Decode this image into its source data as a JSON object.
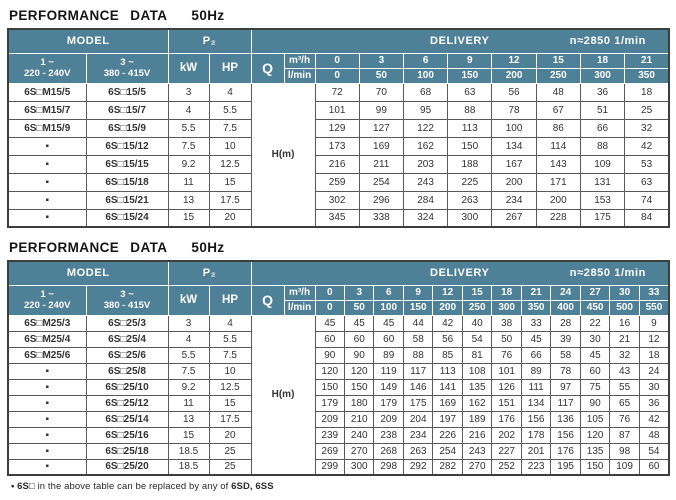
{
  "colors": {
    "header_teal": "#4e8098",
    "grid_dark": "#595959",
    "title_text": "#151515"
  },
  "footnote": {
    "lead": "• 6S□",
    "middle": " in the above table can be replaced by any of ",
    "tail": "6SD, 6SS"
  },
  "tables": [
    {
      "title": "PERFORMANCE DATA",
      "freq": "50Hz",
      "headers": {
        "model": "MODEL",
        "p2": "P₂",
        "delivery": "DELIVERY",
        "speed": "n≈2850 1/min",
        "phase1": "1 ~",
        "phase1v": "220 - 240V",
        "phase3": "3 ~",
        "phase3v": "380 - 415V",
        "kw": "kW",
        "hp": "HP",
        "q": "Q",
        "m3h": "m³/h",
        "lmin": "l/min",
        "h": "H",
        "h_unit": "(m)"
      },
      "flow_m3h": [
        "0",
        "3",
        "6",
        "9",
        "12",
        "15",
        "18",
        "21"
      ],
      "flow_lmin": [
        "0",
        "50",
        "100",
        "150",
        "200",
        "250",
        "300",
        "350"
      ],
      "rows": [
        {
          "model1": "6S□M15/5",
          "model3": "6S□15/5",
          "kw": "3",
          "hp": "4",
          "values": [
            "72",
            "70",
            "68",
            "63",
            "56",
            "48",
            "36",
            "18"
          ]
        },
        {
          "model1": "6S□M15/7",
          "model3": "6S□15/7",
          "kw": "4",
          "hp": "5.5",
          "values": [
            "101",
            "99",
            "95",
            "88",
            "78",
            "67",
            "51",
            "25"
          ]
        },
        {
          "model1": "6S□M15/9",
          "model3": "6S□15/9",
          "kw": "5.5",
          "hp": "7.5",
          "values": [
            "129",
            "127",
            "122",
            "113",
            "100",
            "86",
            "66",
            "32"
          ]
        },
        {
          "model1": "▪",
          "model3": "6S□15/12",
          "kw": "7.5",
          "hp": "10",
          "values": [
            "173",
            "169",
            "162",
            "150",
            "134",
            "114",
            "88",
            "42"
          ]
        },
        {
          "model1": "▪",
          "model3": "6S□15/15",
          "kw": "9.2",
          "hp": "12.5",
          "values": [
            "216",
            "211",
            "203",
            "188",
            "167",
            "143",
            "109",
            "53"
          ]
        },
        {
          "model1": "▪",
          "model3": "6S□15/18",
          "kw": "11",
          "hp": "15",
          "values": [
            "259",
            "254",
            "243",
            "225",
            "200",
            "171",
            "131",
            "63"
          ]
        },
        {
          "model1": "▪",
          "model3": "6S□15/21",
          "kw": "13",
          "hp": "17.5",
          "values": [
            "302",
            "296",
            "284",
            "263",
            "234",
            "200",
            "153",
            "74"
          ]
        },
        {
          "model1": "▪",
          "model3": "6S□15/24",
          "kw": "15",
          "hp": "20",
          "values": [
            "345",
            "338",
            "324",
            "300",
            "267",
            "228",
            "175",
            "84"
          ]
        }
      ]
    },
    {
      "title": "PERFORMANCE DATA",
      "freq": "50Hz",
      "headers": {
        "model": "MODEL",
        "p2": "P₂",
        "delivery": "DELIVERY",
        "speed": "n≈2850 1/min",
        "phase1": "1 ~",
        "phase1v": "220 - 240V",
        "phase3": "3 ~",
        "phase3v": "380 - 415V",
        "kw": "kW",
        "hp": "HP",
        "q": "Q",
        "m3h": "m³/h",
        "lmin": "l/min",
        "h": "H",
        "h_unit": "(m)"
      },
      "flow_m3h": [
        "0",
        "3",
        "6",
        "9",
        "12",
        "15",
        "18",
        "21",
        "24",
        "27",
        "30",
        "33"
      ],
      "flow_lmin": [
        "0",
        "50",
        "100",
        "150",
        "200",
        "250",
        "300",
        "350",
        "400",
        "450",
        "500",
        "550"
      ],
      "rows": [
        {
          "model1": "6S□M25/3",
          "model3": "6S□25/3",
          "kw": "3",
          "hp": "4",
          "values": [
            "45",
            "45",
            "45",
            "44",
            "42",
            "40",
            "38",
            "33",
            "28",
            "22",
            "16",
            "9"
          ]
        },
        {
          "model1": "6S□M25/4",
          "model3": "6S□25/4",
          "kw": "4",
          "hp": "5.5",
          "values": [
            "60",
            "60",
            "60",
            "58",
            "56",
            "54",
            "50",
            "45",
            "39",
            "30",
            "21",
            "12"
          ]
        },
        {
          "model1": "6S□M25/6",
          "model3": "6S□25/6",
          "kw": "5.5",
          "hp": "7.5",
          "values": [
            "90",
            "90",
            "89",
            "88",
            "85",
            "81",
            "76",
            "66",
            "58",
            "45",
            "32",
            "18"
          ]
        },
        {
          "model1": "▪",
          "model3": "6S□25/8",
          "kw": "7.5",
          "hp": "10",
          "values": [
            "120",
            "120",
            "119",
            "117",
            "113",
            "108",
            "101",
            "89",
            "78",
            "60",
            "43",
            "24"
          ]
        },
        {
          "model1": "▪",
          "model3": "6S□25/10",
          "kw": "9.2",
          "hp": "12.5",
          "values": [
            "150",
            "150",
            "149",
            "146",
            "141",
            "135",
            "126",
            "111",
            "97",
            "75",
            "55",
            "30"
          ]
        },
        {
          "model1": "▪",
          "model3": "6S□25/12",
          "kw": "11",
          "hp": "15",
          "values": [
            "179",
            "180",
            "179",
            "175",
            "169",
            "162",
            "151",
            "134",
            "117",
            "90",
            "65",
            "36"
          ]
        },
        {
          "model1": "▪",
          "model3": "6S□25/14",
          "kw": "13",
          "hp": "17.5",
          "values": [
            "209",
            "210",
            "209",
            "204",
            "197",
            "189",
            "176",
            "156",
            "136",
            "105",
            "76",
            "42"
          ]
        },
        {
          "model1": "▪",
          "model3": "6S□25/16",
          "kw": "15",
          "hp": "20",
          "values": [
            "239",
            "240",
            "238",
            "234",
            "226",
            "216",
            "202",
            "178",
            "156",
            "120",
            "87",
            "48"
          ]
        },
        {
          "model1": "▪",
          "model3": "6S□25/18",
          "kw": "18.5",
          "hp": "25",
          "values": [
            "269",
            "270",
            "268",
            "263",
            "254",
            "243",
            "227",
            "201",
            "176",
            "135",
            "98",
            "54"
          ]
        },
        {
          "model1": "▪",
          "model3": "6S□25/20",
          "kw": "18.5",
          "hp": "25",
          "values": [
            "299",
            "300",
            "298",
            "292",
            "282",
            "270",
            "252",
            "223",
            "195",
            "150",
            "109",
            "60"
          ]
        }
      ]
    }
  ]
}
